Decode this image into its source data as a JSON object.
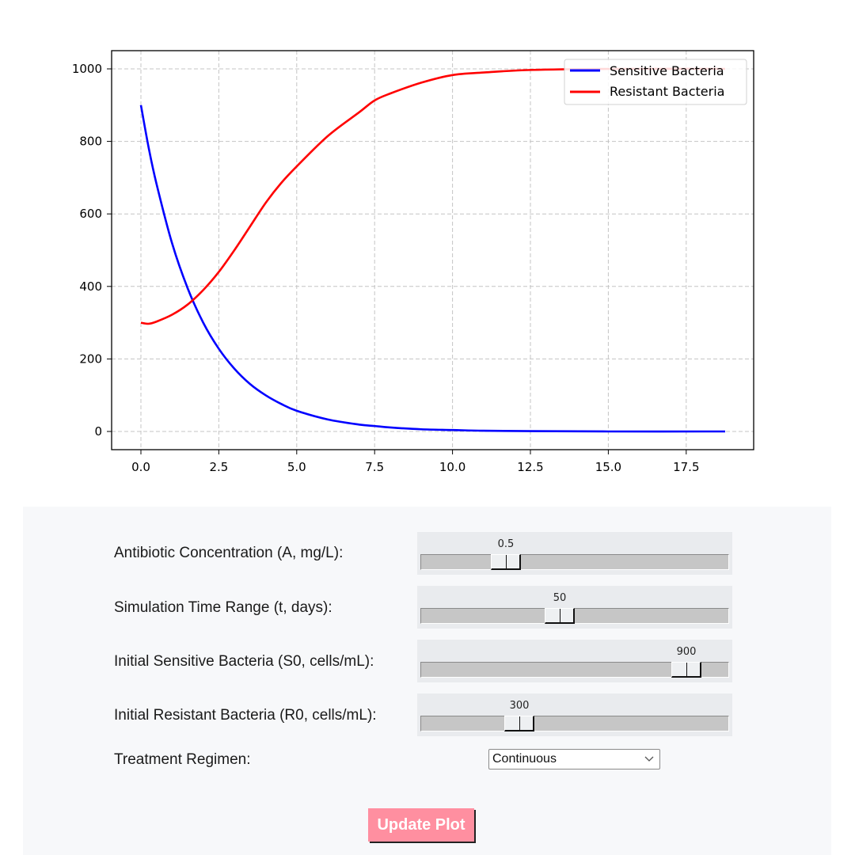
{
  "chart_data": {
    "type": "line",
    "title": "",
    "xlabel": "",
    "ylabel": "",
    "xlim": [
      -0.94,
      19.69
    ],
    "ylim": [
      -50,
      1050
    ],
    "grid": true,
    "legend_position": "upper right",
    "x_ticks": [
      "0.0",
      "2.5",
      "5.0",
      "7.5",
      "10.0",
      "12.5",
      "15.0",
      "17.5"
    ],
    "y_ticks": [
      "0",
      "200",
      "400",
      "600",
      "800",
      "1000"
    ],
    "x": [
      0,
      0.25,
      0.5,
      1.0,
      1.5,
      2.0,
      2.5,
      3.0,
      3.5,
      4.0,
      4.5,
      5.0,
      6.0,
      7.0,
      7.5,
      8.0,
      9.0,
      10.0,
      11.0,
      12.5,
      15.0,
      18.75
    ],
    "series": [
      {
        "name": "Sensitive Bacteria",
        "color": "#0000ff",
        "values": [
          900,
          782,
          683,
          519,
          395,
          300,
          228,
          173,
          131,
          100,
          76,
          57,
          33,
          19,
          15,
          11,
          6,
          4,
          2,
          1,
          0,
          0
        ]
      },
      {
        "name": "Resistant Bacteria",
        "color": "#ff0000",
        "values": [
          300,
          297,
          303,
          322,
          350,
          390,
          440,
          500,
          565,
          630,
          685,
          731,
          815,
          880,
          913,
          932,
          962,
          983,
          990,
          997,
          1000,
          1000
        ]
      }
    ]
  },
  "controls": {
    "antibiotic": {
      "label": "Antibiotic Concentration (A, mg/L):",
      "value": "0.5"
    },
    "time_range": {
      "label": "Simulation Time Range (t, days):",
      "value": "50"
    },
    "initial_sensitive": {
      "label": "Initial Sensitive Bacteria (S0, cells/mL):",
      "value": "900"
    },
    "initial_resistant": {
      "label": "Initial Resistant Bacteria (R0, cells/mL):",
      "value": "300"
    },
    "regimen": {
      "label": "Treatment Regimen:",
      "selected": "Continuous"
    },
    "update_button": {
      "label": "Update Plot",
      "color": "#ff8fa0"
    }
  }
}
